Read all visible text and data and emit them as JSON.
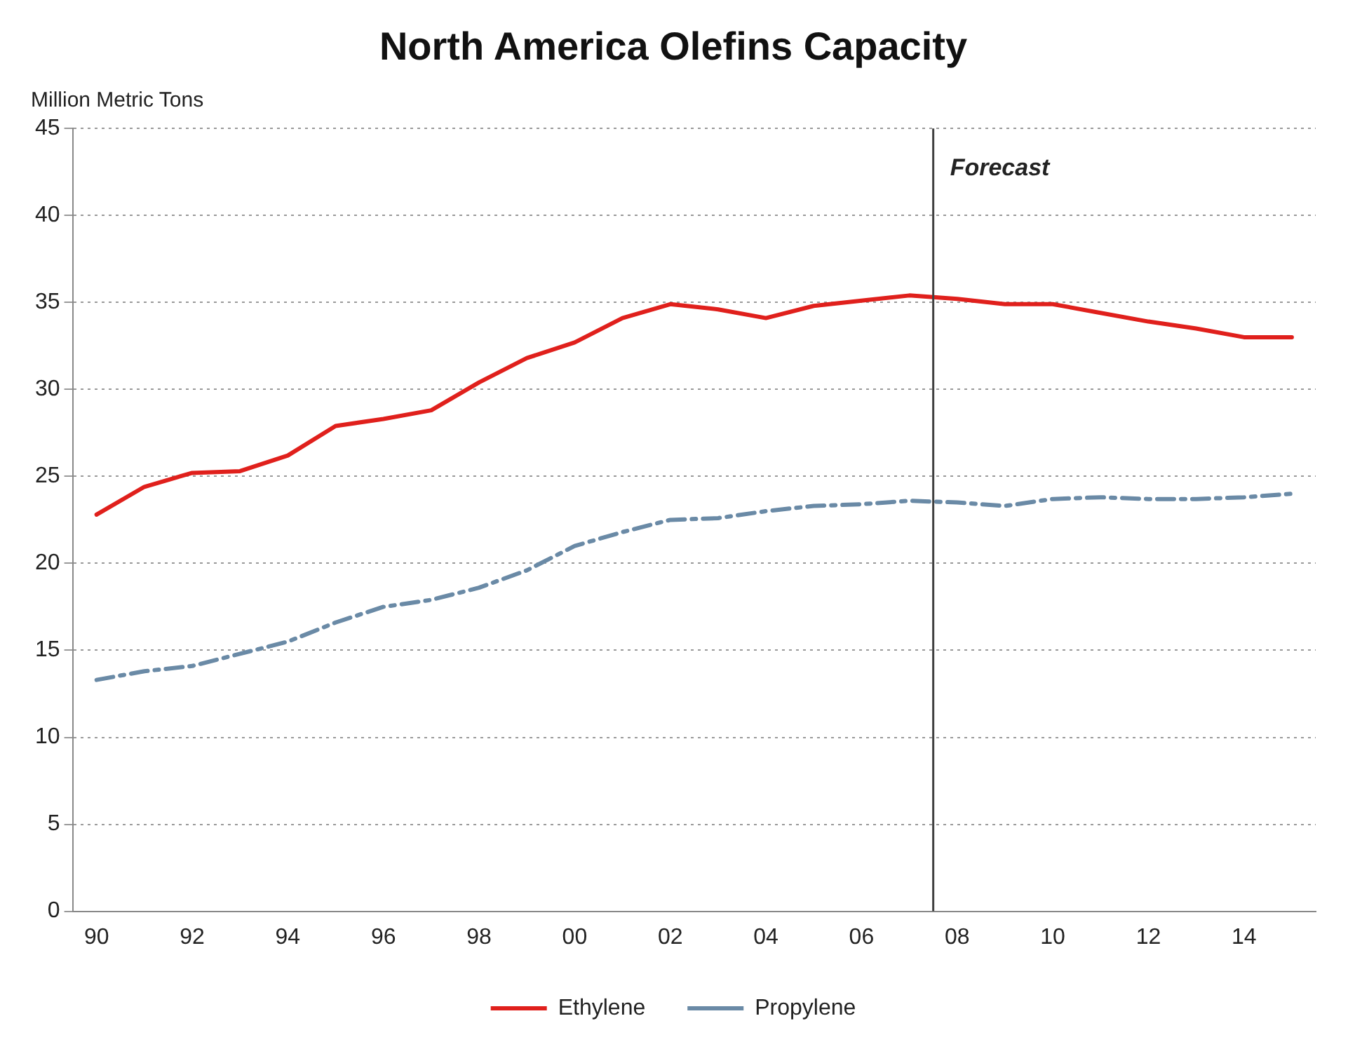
{
  "chart_data": {
    "type": "line",
    "title": "North America Olefins Capacity",
    "ylabel": "Million Metric Tons",
    "x": [
      1990,
      1991,
      1992,
      1993,
      1994,
      1995,
      1996,
      1997,
      1998,
      1999,
      2000,
      2001,
      2002,
      2003,
      2004,
      2005,
      2006,
      2007,
      2008,
      2009,
      2010,
      2011,
      2012,
      2013,
      2014,
      2015
    ],
    "series": [
      {
        "name": "Ethylene",
        "color": "#e0201c",
        "line_style": "solid",
        "values": [
          22.8,
          24.4,
          25.2,
          25.3,
          26.2,
          27.9,
          28.3,
          28.8,
          30.4,
          31.8,
          32.7,
          34.1,
          34.9,
          34.6,
          34.1,
          34.8,
          35.1,
          35.4,
          35.2,
          34.9,
          34.9,
          34.4,
          33.9,
          33.5,
          33.0,
          33.0
        ]
      },
      {
        "name": "Propylene",
        "color": "#6a8aa6",
        "line_style": "dashed",
        "values": [
          13.3,
          13.8,
          14.1,
          14.8,
          15.5,
          16.6,
          17.5,
          17.9,
          18.6,
          19.6,
          21.0,
          21.8,
          22.5,
          22.6,
          23.0,
          23.3,
          23.4,
          23.6,
          23.5,
          23.3,
          23.7,
          23.8,
          23.7,
          23.7,
          23.8,
          24.0
        ]
      }
    ],
    "xlim": [
      1989.5,
      2015.5
    ],
    "xticks": [
      {
        "value": 1990,
        "label": "90"
      },
      {
        "value": 1992,
        "label": "92"
      },
      {
        "value": 1994,
        "label": "94"
      },
      {
        "value": 1996,
        "label": "96"
      },
      {
        "value": 1998,
        "label": "98"
      },
      {
        "value": 2000,
        "label": "00"
      },
      {
        "value": 2002,
        "label": "02"
      },
      {
        "value": 2004,
        "label": "04"
      },
      {
        "value": 2006,
        "label": "06"
      },
      {
        "value": 2008,
        "label": "08"
      },
      {
        "value": 2010,
        "label": "10"
      },
      {
        "value": 2012,
        "label": "12"
      },
      {
        "value": 2014,
        "label": "14"
      }
    ],
    "ylim": [
      0,
      45
    ],
    "yticks": [
      0,
      5,
      10,
      15,
      20,
      25,
      30,
      35,
      40,
      45
    ],
    "ref_lines": [
      {
        "axis": "x",
        "value": 2007.5,
        "label": "Forecast",
        "color": "#404040"
      }
    ],
    "grid": "y",
    "legend": "bottom",
    "marker": "none"
  }
}
